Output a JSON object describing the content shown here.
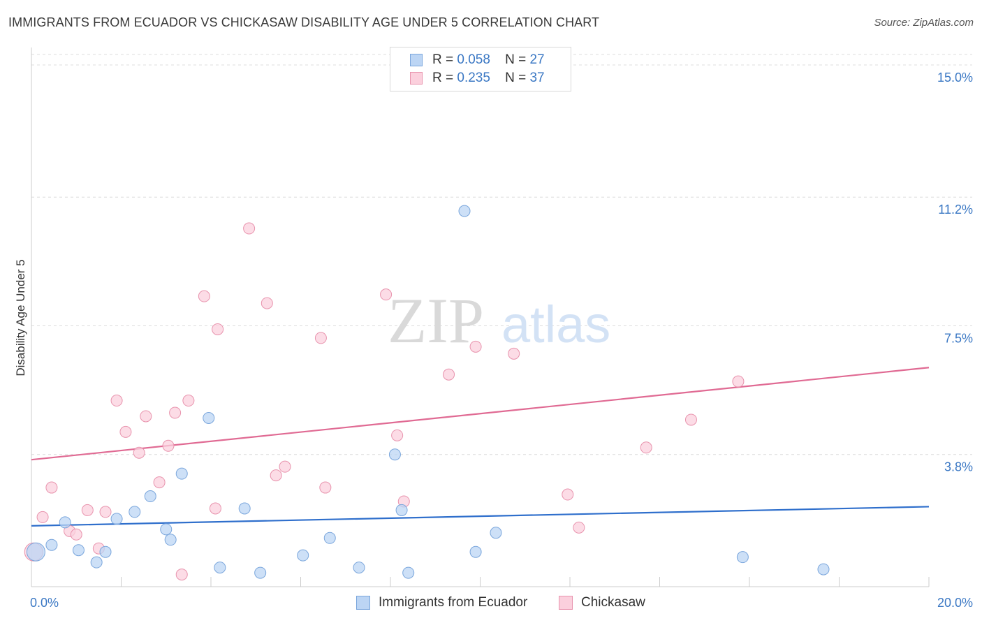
{
  "header": {
    "title": "IMMIGRANTS FROM ECUADOR VS CHICKASAW DISABILITY AGE UNDER 5 CORRELATION CHART",
    "source": "Source: ZipAtlas.com"
  },
  "watermark": {
    "zip": "ZIP",
    "atlas": "atlas"
  },
  "legend": {
    "series": [
      {
        "r_label": "R =",
        "r_value": "0.058",
        "n_label": "N =",
        "n_value": "27",
        "color": "#aecbf0",
        "border": "#7aa6dc"
      },
      {
        "r_label": "R =",
        "r_value": "0.235",
        "n_label": "N =",
        "n_value": "37",
        "color": "#f9c4d4",
        "border": "#e893ad"
      }
    ]
  },
  "bottom_legend": [
    {
      "label": "Immigrants from Ecuador",
      "color": "#bcd5f4",
      "border": "#7aa6dc"
    },
    {
      "label": "Chickasaw",
      "color": "#fbd0dd",
      "border": "#e893ad"
    }
  ],
  "chart_data": {
    "type": "scatter",
    "title": "IMMIGRANTS FROM ECUADOR VS CHICKASAW DISABILITY AGE UNDER 5 CORRELATION CHART",
    "xlabel": "",
    "ylabel": "Disability Age Under 5",
    "xlim": [
      0,
      20
    ],
    "ylim": [
      0,
      15.3
    ],
    "x_tick_labels": [
      "0.0%",
      "20.0%"
    ],
    "y_ticks": [
      3.8,
      7.5,
      11.2,
      15.0
    ],
    "y_tick_labels": [
      "3.8%",
      "7.5%",
      "11.2%",
      "15.0%"
    ],
    "grid": true,
    "legend_position": "top-center",
    "series": [
      {
        "name": "Immigrants from Ecuador",
        "color": "#7aa6dc",
        "fill": "#bcd5f4",
        "trend_color": "#2f6fcc",
        "trend": {
          "x": [
            0,
            20
          ],
          "y": [
            1.75,
            2.3
          ]
        },
        "points": [
          [
            0.1,
            1.0
          ],
          [
            0.45,
            1.2
          ],
          [
            0.75,
            1.85
          ],
          [
            1.05,
            1.05
          ],
          [
            1.45,
            0.7
          ],
          [
            1.65,
            1.0
          ],
          [
            1.9,
            1.95
          ],
          [
            2.3,
            2.15
          ],
          [
            2.65,
            2.6
          ],
          [
            3.1,
            1.35
          ],
          [
            3.0,
            1.65
          ],
          [
            3.35,
            3.25
          ],
          [
            3.95,
            4.85
          ],
          [
            4.2,
            0.55
          ],
          [
            4.75,
            2.25
          ],
          [
            5.1,
            0.4
          ],
          [
            6.05,
            0.9
          ],
          [
            6.65,
            1.4
          ],
          [
            7.3,
            0.55
          ],
          [
            8.1,
            3.8
          ],
          [
            8.25,
            2.2
          ],
          [
            8.4,
            0.4
          ],
          [
            9.65,
            10.8
          ],
          [
            9.9,
            1.0
          ],
          [
            10.35,
            1.55
          ],
          [
            15.85,
            0.85
          ],
          [
            17.65,
            0.5
          ]
        ]
      },
      {
        "name": "Chickasaw",
        "color": "#e893ad",
        "fill": "#fbd0dd",
        "trend_color": "#e06a93",
        "trend": {
          "x": [
            0,
            20
          ],
          "y": [
            3.65,
            6.3
          ]
        },
        "points": [
          [
            0.05,
            1.0
          ],
          [
            0.25,
            2.0
          ],
          [
            0.45,
            2.85
          ],
          [
            0.85,
            1.6
          ],
          [
            1.0,
            1.5
          ],
          [
            1.25,
            2.2
          ],
          [
            1.5,
            1.1
          ],
          [
            1.65,
            2.15
          ],
          [
            1.9,
            5.35
          ],
          [
            2.1,
            4.45
          ],
          [
            2.4,
            3.85
          ],
          [
            2.55,
            4.9
          ],
          [
            2.85,
            3.0
          ],
          [
            3.05,
            4.05
          ],
          [
            3.2,
            5.0
          ],
          [
            3.35,
            0.35
          ],
          [
            3.5,
            5.35
          ],
          [
            3.85,
            8.35
          ],
          [
            4.1,
            2.25
          ],
          [
            4.15,
            7.4
          ],
          [
            4.85,
            10.3
          ],
          [
            5.25,
            8.15
          ],
          [
            5.45,
            3.2
          ],
          [
            5.65,
            3.45
          ],
          [
            6.45,
            7.15
          ],
          [
            6.55,
            2.85
          ],
          [
            7.9,
            8.4
          ],
          [
            8.15,
            4.35
          ],
          [
            9.3,
            6.1
          ],
          [
            8.3,
            2.45
          ],
          [
            9.9,
            6.9
          ],
          [
            10.75,
            6.7
          ],
          [
            11.95,
            2.65
          ],
          [
            12.2,
            1.7
          ],
          [
            13.7,
            4.0
          ],
          [
            14.7,
            4.8
          ],
          [
            15.75,
            5.9
          ]
        ]
      }
    ]
  }
}
